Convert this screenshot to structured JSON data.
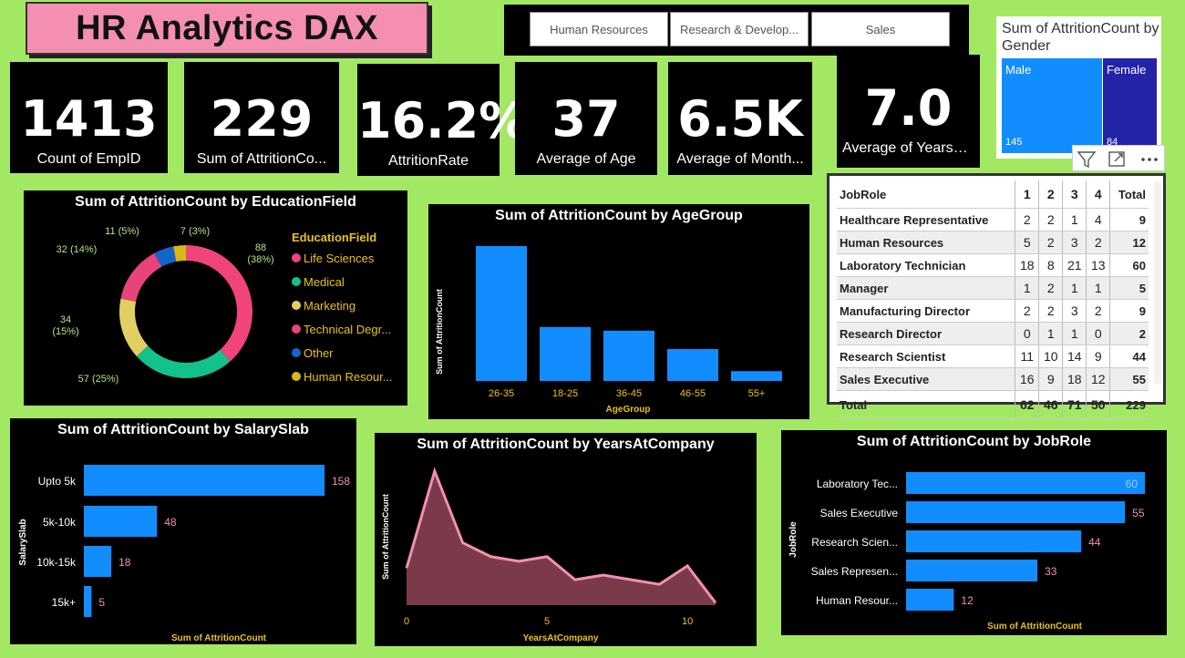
{
  "title": "HR Analytics DAX",
  "slicer": [
    "Human Resources",
    "Research & Develop...",
    "Sales"
  ],
  "kpis": [
    {
      "value": "1413",
      "label": "Count of EmpID"
    },
    {
      "value": "229",
      "label": "Sum of AttritionCo..."
    },
    {
      "value": "16.2%",
      "label": "AttritionRate"
    },
    {
      "value": "37",
      "label": "Average of Age"
    },
    {
      "value": "6.5K",
      "label": "Average of Month..."
    },
    {
      "value": "7.0",
      "label": "Average of YearsA..."
    }
  ],
  "gender": {
    "title": "Sum of AttritionCount by Gender",
    "male_label": "Male",
    "female_label": "Female",
    "male_value": "145",
    "female_value": "84",
    "male_color": "#118dff",
    "female_color": "#2323a8"
  },
  "matrix": {
    "headers": [
      "JobRole",
      "1",
      "2",
      "3",
      "4",
      "Total"
    ],
    "rows": [
      [
        "Healthcare Representative",
        "2",
        "2",
        "1",
        "4",
        "9"
      ],
      [
        "Human Resources",
        "5",
        "2",
        "3",
        "2",
        "12"
      ],
      [
        "Laboratory Technician",
        "18",
        "8",
        "21",
        "13",
        "60"
      ],
      [
        "Manager",
        "1",
        "2",
        "1",
        "1",
        "5"
      ],
      [
        "Manufacturing Director",
        "2",
        "2",
        "3",
        "2",
        "9"
      ],
      [
        "Research Director",
        "0",
        "1",
        "1",
        "0",
        "2"
      ],
      [
        "Research Scientist",
        "11",
        "10",
        "14",
        "9",
        "44"
      ],
      [
        "Sales Executive",
        "16",
        "9",
        "18",
        "12",
        "55"
      ]
    ],
    "total": [
      "Total",
      "62",
      "46",
      "71",
      "50",
      "229"
    ]
  },
  "chart_data": [
    {
      "id": "education",
      "type": "pie",
      "title": "Sum of AttritionCount by EducationField",
      "legend_title": "EducationField",
      "categories": [
        "Life Sciences",
        "Medical",
        "Marketing",
        "Technical Degr...",
        "Other",
        "Human Resour..."
      ],
      "values": [
        88,
        57,
        34,
        32,
        11,
        7
      ],
      "labels": [
        "88 (38%)",
        "57 (25%)",
        "34 (15%)",
        "32 (14%)",
        "11 (5%)",
        "7 (3%)"
      ],
      "colors": [
        "#f0457a",
        "#12c28a",
        "#e2cf62",
        "#e6447b",
        "#1166cc",
        "#d6b816"
      ]
    },
    {
      "id": "agegroup",
      "type": "bar",
      "title": "Sum of AttritionCount by AgeGroup",
      "xlabel": "AgeGroup",
      "ylabel": "Sum of AttritionCount",
      "categories": [
        "26-35",
        "18-25",
        "36-45",
        "46-55",
        "55+"
      ],
      "values": [
        110,
        44,
        41,
        26,
        8
      ]
    },
    {
      "id": "salaryslab",
      "type": "bar",
      "title": "Sum of AttritionCount by SalarySlab",
      "xlabel": "Sum of AttritionCount",
      "ylabel": "SalarySlab",
      "categories": [
        "Upto 5k",
        "5k-10k",
        "10k-15k",
        "15k+"
      ],
      "values": [
        158,
        48,
        18,
        5
      ]
    },
    {
      "id": "years",
      "type": "area",
      "title": "Sum of AttritionCount by YearsAtCompany",
      "xlabel": "YearsAtCompany",
      "ylabel": "Sum of AttritionCount",
      "x": [
        0,
        1,
        2,
        3,
        4,
        5,
        6,
        7,
        8,
        9,
        10,
        11
      ],
      "values": [
        16,
        58,
        27,
        21,
        19,
        21,
        11,
        13,
        11,
        9,
        17,
        1
      ],
      "xticks": [
        "0",
        "5",
        "10"
      ],
      "xlim": [
        0,
        11
      ]
    },
    {
      "id": "jobrole",
      "type": "bar",
      "title": "Sum of AttritionCount by JobRole",
      "xlabel": "Sum of AttritionCount",
      "ylabel": "JobRole",
      "categories": [
        "Laboratory Tec...",
        "Sales Executive",
        "Research Scien...",
        "Sales Represen...",
        "Human Resour..."
      ],
      "values": [
        60,
        55,
        44,
        33,
        12
      ]
    }
  ],
  "colors": {
    "bar": "#118dff",
    "line": "#f48fb1",
    "area": "#7a3a4a",
    "label_pink": "#f48fb1",
    "legend_title": "#e8c21a"
  }
}
